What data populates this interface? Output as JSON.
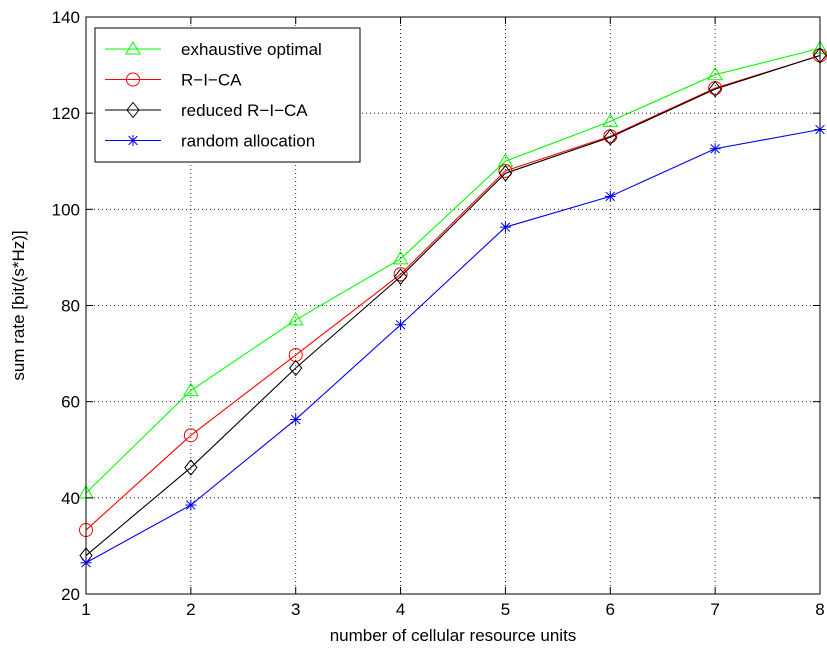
{
  "chart_data": {
    "type": "line",
    "title": "",
    "xlabel": "number of cellular resource units",
    "ylabel": "sum rate [bit/(s*Hz)]",
    "x": [
      1,
      2,
      3,
      4,
      5,
      6,
      7,
      8
    ],
    "xlim": [
      1,
      8
    ],
    "ylim": [
      20,
      140
    ],
    "xticks": [
      "1",
      "2",
      "3",
      "4",
      "5",
      "6",
      "7",
      "8"
    ],
    "yticks": [
      "20",
      "40",
      "60",
      "80",
      "100",
      "120",
      "140"
    ],
    "grid": true,
    "legend_position": "top-left",
    "series": [
      {
        "name": "exhaustive optimal",
        "color": "#00ff00",
        "marker": "triangle",
        "values": [
          41.0,
          62.3,
          77.0,
          89.7,
          110.0,
          118.3,
          128.0,
          133.5
        ]
      },
      {
        "name": "R−I−CA",
        "color": "#ff0000",
        "marker": "circle",
        "values": [
          33.3,
          53.0,
          69.7,
          86.5,
          108.0,
          115.2,
          125.2,
          132.0
        ]
      },
      {
        "name": "reduced R−I−CA",
        "color": "#000000",
        "marker": "diamond",
        "values": [
          28.0,
          46.3,
          67.0,
          86.0,
          107.5,
          115.0,
          125.0,
          132.0
        ]
      },
      {
        "name": "random allocation",
        "color": "#0000ff",
        "marker": "asterisk",
        "values": [
          26.5,
          38.5,
          56.3,
          76.0,
          96.3,
          102.7,
          112.6,
          116.6
        ]
      }
    ]
  }
}
